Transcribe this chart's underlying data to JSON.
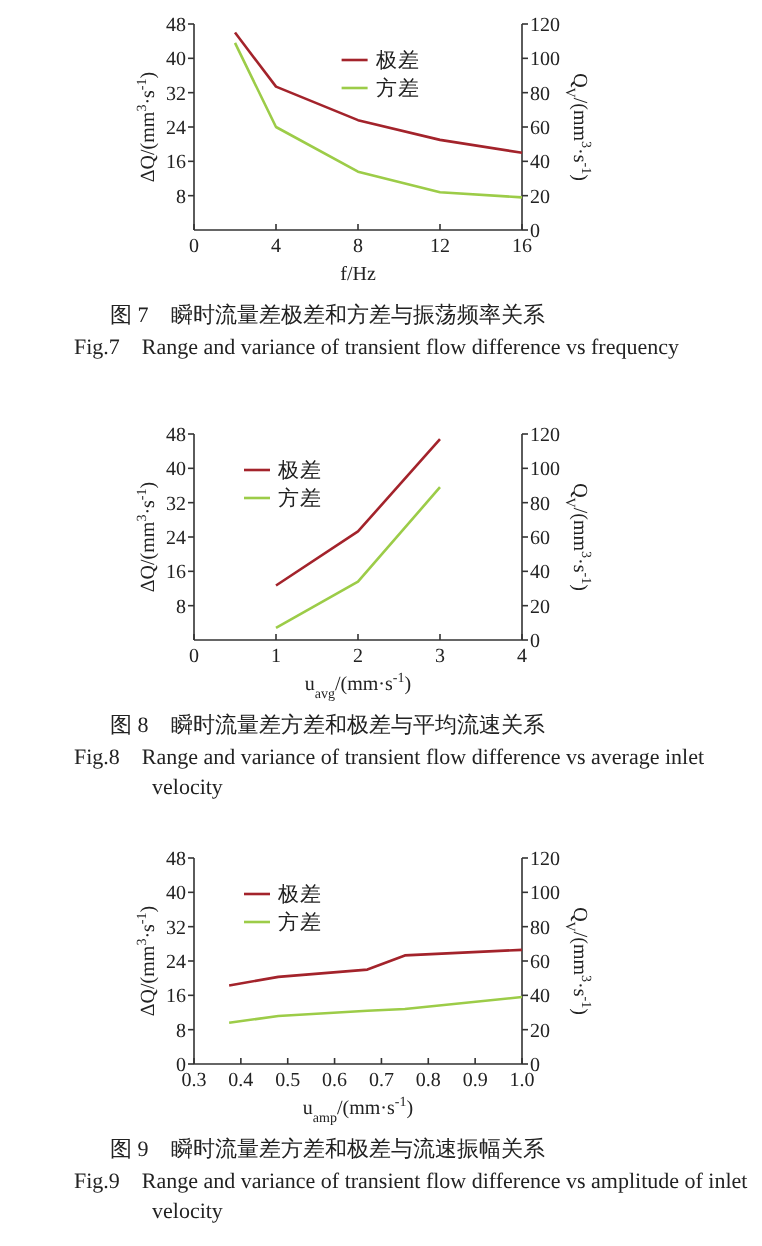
{
  "chart_data": [
    {
      "type": "line",
      "xlabel": "f/Hz",
      "ylabel": "ΔQ/(mm$^{3}$·s$^{-1}$)",
      "y2label": "Q$_{V}$/(mm$^{3}$·s$^{-1}$)",
      "x": [
        2,
        4,
        8,
        12,
        16
      ],
      "xlim": [
        0,
        16
      ],
      "xticks": [
        0,
        4,
        8,
        12,
        16
      ],
      "ylim": [
        0,
        48
      ],
      "yticks": [
        8,
        16,
        24,
        32,
        40,
        48
      ],
      "y2lim": [
        0,
        120
      ],
      "y2ticks": [
        0,
        20,
        40,
        60,
        80,
        100,
        120
      ],
      "series": [
        {
          "name": "极差",
          "color": "#a3232b",
          "values": [
            46,
            33.4,
            25.6,
            21,
            18
          ]
        },
        {
          "name": "方差",
          "color": "#9ccc48",
          "axis": "y2",
          "values": [
            109,
            60,
            34,
            22,
            19
          ]
        }
      ],
      "legend": "top",
      "grid": false,
      "marker": "none",
      "annotations": [
        "图 7　瞬时流量差极差和方差与振荡频率关系",
        "Fig.7　Range and variance of transient flow difference vs frequency"
      ]
    },
    {
      "type": "line",
      "xlabel": "u$_{avg}$/(mm·s$^{-1}$)",
      "ylabel": "ΔQ/(mm$^{3}$·s$^{-1}$)",
      "y2label": "Q$_{V}$/(mm$^{3}$·s$^{-1}$)",
      "x": [
        1,
        2,
        3
      ],
      "xlim": [
        0,
        4
      ],
      "xticks": [
        0,
        1,
        2,
        3,
        4
      ],
      "ylim": [
        0,
        48
      ],
      "yticks": [
        8,
        16,
        24,
        32,
        40,
        48
      ],
      "y2lim": [
        0,
        120
      ],
      "y2ticks": [
        0,
        20,
        40,
        60,
        80,
        100,
        120
      ],
      "series": [
        {
          "name": "极差",
          "color": "#a3232b",
          "values": [
            12.7,
            25.3,
            46.8
          ]
        },
        {
          "name": "方差",
          "color": "#9ccc48",
          "axis": "y2",
          "values": [
            7,
            34,
            89
          ]
        }
      ],
      "legend": "top left",
      "grid": false,
      "marker": "none",
      "annotations": [
        "图 8　瞬时流量差方差和极差与平均流速关系",
        "Fig.8　Range and variance of transient flow difference vs average inlet velocity"
      ]
    },
    {
      "type": "line",
      "xlabel": "u$_{amp}$/(mm·s$^{-1}$)",
      "ylabel": "ΔQ/(mm$^{3}$·s$^{-1}$)",
      "y2label": "Q$_{V}$/(mm$^{3}$·s$^{-1}$)",
      "x": [
        0.375,
        0.48,
        0.67,
        0.75,
        1.0
      ],
      "xlim": [
        0.3,
        1.0
      ],
      "xticks": [
        0.3,
        0.4,
        0.5,
        0.6,
        0.7,
        0.8,
        0.9,
        {
          "value": 1.0,
          "label": "1.0"
        }
      ],
      "ylim": [
        0,
        48
      ],
      "yticks": [
        0,
        8,
        16,
        24,
        32,
        40,
        48
      ],
      "y2lim": [
        0,
        120
      ],
      "y2ticks": [
        0,
        20,
        40,
        60,
        80,
        100,
        120
      ],
      "series": [
        {
          "name": "极差",
          "color": "#a3232b",
          "values": [
            18.3,
            20.3,
            22,
            25.3,
            26.6
          ]
        },
        {
          "name": "方差",
          "color": "#9ccc48",
          "axis": "y2",
          "values": [
            24,
            28,
            31,
            32,
            39
          ]
        }
      ],
      "legend": "top left",
      "grid": false,
      "marker": "none",
      "annotations": [
        "图 9　瞬时流量差方差和极差与流速振幅关系",
        "Fig.9　Range and variance of transient flow difference vs amplitude of inlet velocity"
      ]
    }
  ]
}
